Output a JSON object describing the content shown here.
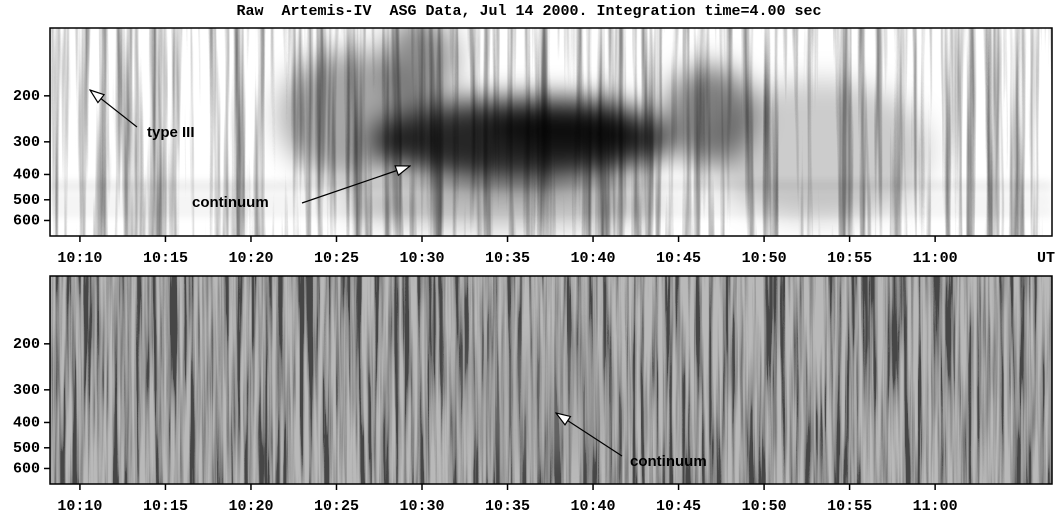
{
  "chart_data": [
    {
      "type": "spectrogram",
      "title": "Raw  Artemis-IV  ASG Data, Jul 14 2000. Integration time=4.00 sec",
      "x_label": "UT",
      "xlim": [
        "10:08:15",
        "11:06:50"
      ],
      "xticks": [
        "10:10",
        "10:15",
        "10:20",
        "10:25",
        "10:30",
        "10:35",
        "10:40",
        "10:45",
        "10:50",
        "10:55",
        "11:00"
      ],
      "ylim": [
        110,
        688
      ],
      "yticks": [
        200,
        300,
        400,
        500,
        600
      ],
      "log_y": true,
      "y_inverted": true,
      "background": "#ffffff",
      "annotations": [
        "type III",
        "continuum"
      ]
    },
    {
      "type": "spectrogram",
      "xlim": [
        "10:08:15",
        "11:06:50"
      ],
      "xticks": [
        "10:10",
        "10:15",
        "10:20",
        "10:25",
        "10:30",
        "10:35",
        "10:40",
        "10:45",
        "10:50",
        "10:55",
        "11:00"
      ],
      "ylim": [
        110,
        688
      ],
      "yticks": [
        200,
        300,
        400,
        500,
        600
      ],
      "log_y": true,
      "y_inverted": true,
      "background": "#808080",
      "annotations": [
        "continuum"
      ]
    }
  ]
}
